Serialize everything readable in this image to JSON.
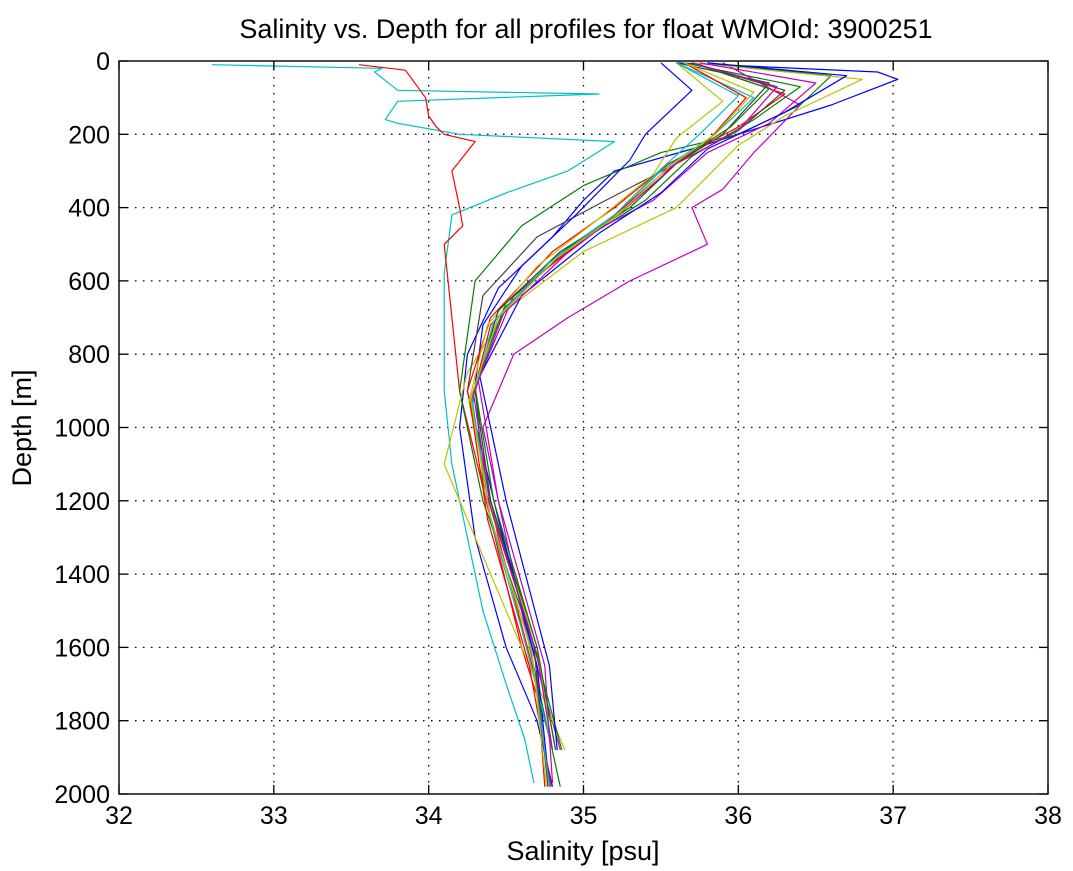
{
  "chart_data": {
    "type": "line",
    "title": "Salinity vs. Depth for all profiles for float WMOId: 3900251",
    "xlabel": "Salinity [psu]",
    "ylabel": "Depth [m]",
    "xlim": [
      32,
      38
    ],
    "ylim": [
      0,
      2000
    ],
    "y_reversed": true,
    "xticks": [
      "32",
      "33",
      "34",
      "35",
      "36",
      "37",
      "38"
    ],
    "yticks": [
      "0",
      "200",
      "400",
      "600",
      "800",
      "1000",
      "1200",
      "1400",
      "1600",
      "1800",
      "2000"
    ],
    "grid": true,
    "legend": "none",
    "series": [
      {
        "color": "#00c0c0",
        "x": [
          32.6,
          33.7,
          33.65,
          33.8,
          35.1,
          33.8,
          33.72,
          33.8,
          34.2,
          35.2,
          34.9,
          34.5,
          34.15,
          34.1,
          34.1,
          34.15,
          34.25,
          34.35,
          34.5,
          34.62,
          34.68
        ],
        "y": [
          10,
          20,
          30,
          80,
          90,
          110,
          160,
          170,
          200,
          220,
          300,
          360,
          420,
          580,
          900,
          1100,
          1300,
          1500,
          1700,
          1850,
          1970
        ]
      },
      {
        "color": "#ff0000",
        "x": [
          33.55,
          33.85,
          33.98,
          34.0,
          34.05,
          34.1,
          34.3,
          34.15,
          34.2,
          34.22,
          34.1,
          34.2,
          34.6,
          34.75,
          34.8
        ],
        "y": [
          10,
          25,
          100,
          150,
          180,
          200,
          220,
          300,
          400,
          450,
          500,
          900,
          1600,
          1800,
          1880
        ]
      },
      {
        "color": "#0000ff",
        "x": [
          35.6,
          36.9,
          37.03,
          36.6,
          36.0,
          35.7,
          35.2,
          35.0,
          34.8,
          34.45,
          34.25,
          34.2,
          34.3,
          34.5,
          34.7,
          34.8
        ],
        "y": [
          5,
          30,
          50,
          120,
          200,
          240,
          300,
          380,
          480,
          620,
          800,
          1000,
          1300,
          1600,
          1800,
          1980
        ]
      },
      {
        "color": "#008000",
        "x": [
          35.8,
          36.6,
          36.4,
          36.0,
          35.5,
          35.0,
          34.6,
          34.3,
          34.2,
          34.35,
          34.6,
          34.85
        ],
        "y": [
          5,
          40,
          120,
          200,
          250,
          340,
          450,
          600,
          900,
          1200,
          1500,
          1980
        ]
      },
      {
        "color": "#c000c0",
        "x": [
          35.9,
          36.4,
          36.1,
          35.9,
          35.7,
          35.8,
          35.6,
          35.3,
          34.9,
          34.55,
          34.35,
          34.6,
          34.85
        ],
        "y": [
          5,
          120,
          250,
          350,
          400,
          500,
          540,
          600,
          700,
          800,
          1000,
          1500,
          1880
        ]
      },
      {
        "color": "#c0c000",
        "x": [
          35.7,
          36.8,
          36.3,
          36.0,
          35.6,
          35.0,
          34.5,
          34.25,
          34.1,
          34.3,
          34.6,
          34.88
        ],
        "y": [
          5,
          50,
          150,
          230,
          400,
          520,
          680,
          850,
          1100,
          1300,
          1600,
          1880
        ]
      },
      {
        "color": "#404040",
        "x": [
          35.6,
          36.2,
          35.9,
          35.6,
          35.1,
          34.7,
          34.35,
          34.25,
          34.4,
          34.7,
          34.82
        ],
        "y": [
          5,
          60,
          200,
          280,
          390,
          480,
          640,
          900,
          1200,
          1600,
          1880
        ]
      },
      {
        "color": "#0000ff",
        "x": [
          35.5,
          35.7,
          35.4,
          35.3,
          34.95,
          34.6,
          34.35,
          34.28,
          34.45,
          34.7,
          34.78
        ],
        "y": [
          5,
          80,
          200,
          270,
          420,
          560,
          720,
          950,
          1250,
          1650,
          1980
        ]
      },
      {
        "color": "#ff0000",
        "x": [
          35.7,
          36.3,
          36.0,
          35.55,
          35.2,
          34.8,
          34.4,
          34.25,
          34.45,
          34.7,
          34.75
        ],
        "y": [
          5,
          90,
          180,
          280,
          400,
          520,
          700,
          900,
          1300,
          1700,
          1980
        ]
      },
      {
        "color": "#008000",
        "x": [
          35.65,
          36.4,
          36.1,
          35.7,
          35.4,
          34.95,
          34.5,
          34.3,
          34.35,
          34.65,
          34.86
        ],
        "y": [
          5,
          70,
          160,
          260,
          380,
          500,
          660,
          880,
          1150,
          1550,
          1880
        ]
      },
      {
        "color": "#00c0c0",
        "x": [
          35.6,
          36.1,
          35.85,
          35.5,
          35.2,
          34.8,
          34.45,
          34.28,
          34.4,
          34.6,
          34.8
        ],
        "y": [
          5,
          100,
          200,
          300,
          420,
          540,
          700,
          920,
          1250,
          1550,
          1880
        ]
      },
      {
        "color": "#c000c0",
        "x": [
          35.75,
          36.5,
          36.2,
          35.8,
          35.45,
          35.0,
          34.55,
          34.32,
          34.45,
          34.75,
          34.8
        ],
        "y": [
          5,
          60,
          170,
          250,
          380,
          480,
          640,
          870,
          1200,
          1650,
          1970
        ]
      },
      {
        "color": "#c0c000",
        "x": [
          35.6,
          35.9,
          35.6,
          35.45,
          35.1,
          34.7,
          34.38,
          34.26,
          34.42,
          34.7,
          34.8
        ],
        "y": [
          5,
          110,
          210,
          310,
          430,
          560,
          720,
          930,
          1250,
          1600,
          1880
        ]
      },
      {
        "color": "#404040",
        "x": [
          35.7,
          36.3,
          36.0,
          35.6,
          35.3,
          34.85,
          34.45,
          34.3,
          34.4,
          34.68,
          34.77
        ],
        "y": [
          5,
          80,
          190,
          280,
          400,
          520,
          680,
          900,
          1200,
          1600,
          1980
        ]
      },
      {
        "color": "#0000ff",
        "x": [
          35.8,
          36.7,
          36.3,
          35.8,
          35.5,
          35.1,
          34.6,
          34.33,
          34.5,
          34.78,
          34.83
        ],
        "y": [
          5,
          40,
          140,
          240,
          360,
          470,
          640,
          860,
          1200,
          1650,
          1880
        ]
      },
      {
        "color": "#ff0000",
        "x": [
          35.65,
          36.05,
          35.8,
          35.5,
          35.15,
          34.75,
          34.4,
          34.27,
          34.38,
          34.65,
          34.79
        ],
        "y": [
          5,
          100,
          220,
          310,
          440,
          570,
          720,
          940,
          1250,
          1650,
          1980
        ]
      },
      {
        "color": "#008000",
        "x": [
          35.7,
          36.2,
          35.95,
          35.62,
          35.3,
          34.9,
          34.5,
          34.3,
          34.42,
          34.7,
          34.82
        ],
        "y": [
          5,
          75,
          180,
          270,
          400,
          510,
          670,
          890,
          1200,
          1600,
          1880
        ]
      },
      {
        "color": "#00c0c0",
        "x": [
          35.6,
          36.0,
          35.75,
          35.5,
          35.2,
          34.78,
          34.42,
          34.28,
          34.4,
          34.66,
          34.78
        ],
        "y": [
          5,
          95,
          200,
          295,
          420,
          550,
          710,
          930,
          1250,
          1600,
          1980
        ]
      },
      {
        "color": "#c000c0",
        "x": [
          35.7,
          36.25,
          36.0,
          35.6,
          35.25,
          34.88,
          34.48,
          34.29,
          34.4,
          34.7,
          34.8
        ],
        "y": [
          5,
          70,
          190,
          280,
          410,
          530,
          690,
          910,
          1220,
          1620,
          1880
        ]
      },
      {
        "color": "#c0c000",
        "x": [
          35.65,
          36.1,
          35.85,
          35.55,
          35.22,
          34.82,
          34.45,
          34.27,
          34.39,
          34.67,
          34.76
        ],
        "y": [
          5,
          85,
          200,
          290,
          420,
          540,
          700,
          920,
          1230,
          1620,
          1980
        ]
      }
    ]
  }
}
